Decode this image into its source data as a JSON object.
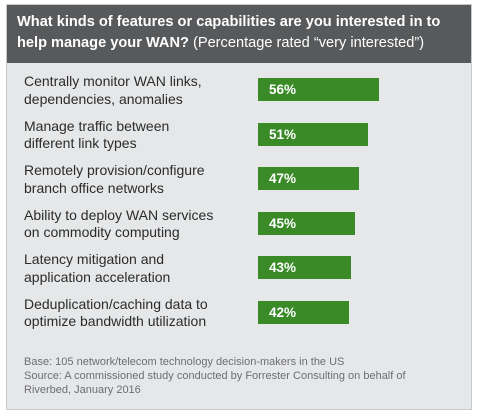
{
  "header": {
    "title_bold": "What kinds of features or capabilities are you interested in to help manage your WAN?",
    "title_sub": "(Percentage rated “very interested”)"
  },
  "chart_data": {
    "type": "bar",
    "orientation": "horizontal",
    "title": "What kinds of features or capabilities are you interested in to help manage your WAN? (Percentage rated “very interested”)",
    "categories": [
      [
        "Centrally monitor WAN links,",
        "dependencies, anomalies"
      ],
      [
        "Manage traffic between",
        "different link types"
      ],
      [
        "Remotely provision/configure",
        "branch office networks"
      ],
      [
        "Ability to deploy WAN services",
        "on commodity computing"
      ],
      [
        "Latency mitigation and",
        "application acceleration"
      ],
      [
        "Deduplication/caching data to",
        "optimize bandwidth utilization"
      ]
    ],
    "values": [
      56,
      51,
      47,
      45,
      43,
      42
    ],
    "value_labels": [
      "56%",
      "51%",
      "47%",
      "45%",
      "43%",
      "42%"
    ],
    "unit": "%",
    "bar_color": "#3a8a28",
    "xlabel": "",
    "ylabel": "",
    "grid": false,
    "legend": "none"
  },
  "footer": {
    "base": "Base: 105 network/telecom technology decision-makers in the US",
    "source_line1": "Source: A commissioned study conducted by Forrester Consulting on behalf of",
    "source_line2": "Riverbed, January 2016"
  },
  "colors": {
    "panel_background": "#e6e7e8",
    "header_background": "#58595b",
    "header_text": "#ffffff",
    "bar": "#3a8a28",
    "footer_text": "#6d6e71"
  }
}
